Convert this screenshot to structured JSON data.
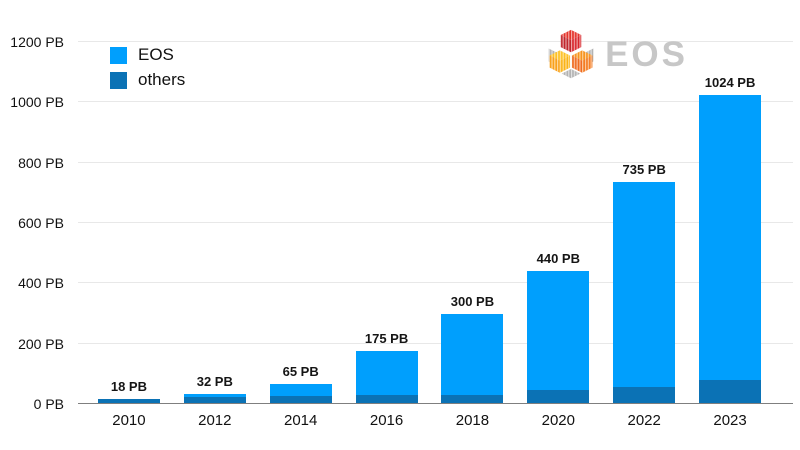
{
  "chart_data": {
    "type": "bar",
    "stacked": true,
    "categories": [
      "2010",
      "2012",
      "2014",
      "2016",
      "2018",
      "2020",
      "2022",
      "2023"
    ],
    "series": [
      {
        "name": "EOS",
        "color": "#009FFD",
        "values": [
          3,
          10,
          37,
          145,
          270,
          395,
          680,
          946
        ]
      },
      {
        "name": "others",
        "color": "#0B72B5",
        "values": [
          15,
          22,
          28,
          30,
          30,
          45,
          55,
          78
        ]
      }
    ],
    "totals": [
      18,
      32,
      65,
      175,
      300,
      440,
      735,
      1024
    ],
    "total_labels": [
      "18 PB",
      "32 PB",
      "65 PB",
      "175 PB",
      "300 PB",
      "440 PB",
      "735 PB",
      "1024 PB"
    ],
    "y_ticks": [
      {
        "label": "0 PB",
        "value": 0
      },
      {
        "label": "200 PB",
        "value": 200
      },
      {
        "label": "400 PB",
        "value": 400
      },
      {
        "label": "600 PB",
        "value": 600
      },
      {
        "label": "800 PB",
        "value": 800
      },
      {
        "label": "1000 PB",
        "value": 1000
      },
      {
        "label": "1200 PB",
        "value": 1200
      }
    ],
    "ylim": [
      0,
      1200
    ],
    "xlabel": "",
    "ylabel": "",
    "title": "",
    "grid": true,
    "legend_position": "top-left",
    "note": "stacked segments: others on bottom, EOS on top; segment splits estimated from pixels, totals from data labels"
  },
  "legend": {
    "items": [
      {
        "label": "EOS",
        "color": "#009FFD"
      },
      {
        "label": "others",
        "color": "#0B72B5"
      }
    ]
  },
  "logo": {
    "name": "EOS",
    "colors": {
      "red": "#d8262c",
      "yellow": "#fbb315",
      "orange": "#f47b20",
      "gray": "#b3b3b3",
      "text": "#c7c7c7"
    }
  },
  "colors": {
    "eos_bar": "#009FFD",
    "others_bar": "#0B72B5",
    "gridline": "#e8e8e8",
    "axis_line": "#7f7f7f",
    "text": "#111111"
  }
}
